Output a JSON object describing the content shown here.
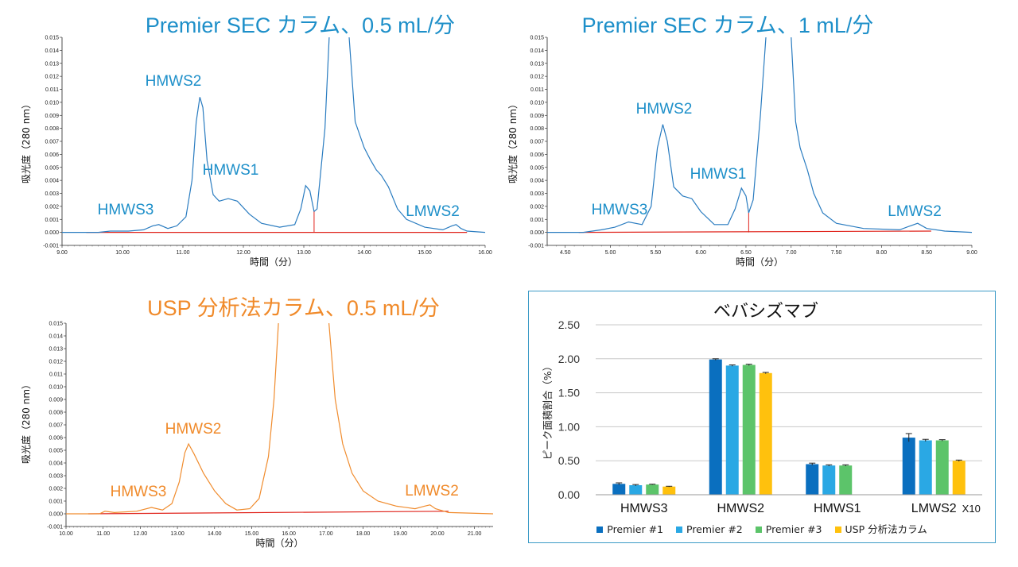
{
  "colors": {
    "premier_trace": "#2a7cc0",
    "premier_title": "#1d8fc9",
    "usp_trace": "#f08c2e",
    "usp_title": "#f08a2a",
    "baseline": "#e0231b",
    "bar1": "#0a6fbf",
    "bar2": "#2aa8e4",
    "bar3": "#5cc46a",
    "bar4": "#ffc10d"
  },
  "chart_data": [
    {
      "id": "premier_0_5",
      "type": "line",
      "title": "Premier SEC カラム、0.5 mL/分",
      "xlabel": "時間（分）",
      "ylabel": "吸光度（280 nm）",
      "xlim": [
        9.0,
        16.0
      ],
      "ylim": [
        -0.001,
        0.015
      ],
      "x_ticks": [
        "9.00",
        "10.00",
        "11.00",
        "12.00",
        "13.00",
        "14.00",
        "15.00",
        "16.00"
      ],
      "y_ticks": [
        "-0.001",
        "0.000",
        "0.001",
        "0.002",
        "0.003",
        "0.004",
        "0.005",
        "0.006",
        "0.007",
        "0.008",
        "0.009",
        "0.010",
        "0.011",
        "0.012",
        "0.013",
        "0.014",
        "0.015"
      ],
      "baseline": [
        [
          9.4,
          0.0
        ],
        [
          15.7,
          0.0
        ]
      ],
      "peaks": [
        {
          "label": "HMWS3",
          "x": 10.55,
          "y": 0.0006
        },
        {
          "label": "HMWS2",
          "x": 11.28,
          "y": 0.0104
        },
        {
          "label": "HMWS1",
          "x": 13.03,
          "y": 0.0036
        },
        {
          "label": "LMWS2",
          "x": 15.5,
          "y": 0.0006
        }
      ],
      "trace": [
        [
          9.0,
          0.0
        ],
        [
          9.6,
          0.0
        ],
        [
          9.8,
          0.0001
        ],
        [
          10.1,
          0.0001
        ],
        [
          10.35,
          0.0002
        ],
        [
          10.5,
          0.0005
        ],
        [
          10.6,
          0.0006
        ],
        [
          10.75,
          0.0003
        ],
        [
          10.9,
          0.0005
        ],
        [
          11.05,
          0.0012
        ],
        [
          11.15,
          0.004
        ],
        [
          11.22,
          0.0085
        ],
        [
          11.28,
          0.0104
        ],
        [
          11.33,
          0.0096
        ],
        [
          11.4,
          0.0055
        ],
        [
          11.5,
          0.0029
        ],
        [
          11.6,
          0.0024
        ],
        [
          11.75,
          0.0026
        ],
        [
          11.9,
          0.0024
        ],
        [
          12.1,
          0.0014
        ],
        [
          12.3,
          0.0007
        ],
        [
          12.6,
          0.0004
        ],
        [
          12.85,
          0.0006
        ],
        [
          12.95,
          0.0018
        ],
        [
          13.03,
          0.0036
        ],
        [
          13.1,
          0.0032
        ],
        [
          13.17,
          0.0016
        ],
        [
          13.22,
          0.0018
        ],
        [
          13.35,
          0.008
        ],
        [
          13.42,
          0.015
        ]
      ],
      "trace2": [
        [
          13.75,
          0.015
        ],
        [
          13.85,
          0.0085
        ],
        [
          14.0,
          0.0065
        ],
        [
          14.1,
          0.0056
        ],
        [
          14.2,
          0.0048
        ],
        [
          14.28,
          0.0044
        ],
        [
          14.4,
          0.0035
        ],
        [
          14.55,
          0.0018
        ],
        [
          14.7,
          0.001
        ],
        [
          15.0,
          0.0004
        ],
        [
          15.3,
          0.0002
        ],
        [
          15.45,
          0.0005
        ],
        [
          15.52,
          0.0006
        ],
        [
          15.6,
          0.0003
        ],
        [
          15.7,
          0.0001
        ],
        [
          16.0,
          0.0
        ]
      ]
    },
    {
      "id": "premier_1",
      "type": "line",
      "title": "Premier SEC カラム、1 mL/分",
      "xlabel": "時間（分）",
      "ylabel": "吸光度（280 nm）",
      "xlim": [
        4.3,
        9.0
      ],
      "ylim": [
        -0.001,
        0.015
      ],
      "x_ticks": [
        "4.50",
        "5.00",
        "5.50",
        "6.00",
        "6.50",
        "7.00",
        "7.50",
        "8.00",
        "8.50",
        "9.00"
      ],
      "y_ticks": [
        "-0.001",
        "0.000",
        "0.001",
        "0.002",
        "0.003",
        "0.004",
        "0.005",
        "0.006",
        "0.007",
        "0.008",
        "0.009",
        "0.010",
        "0.011",
        "0.012",
        "0.013",
        "0.014",
        "0.015"
      ],
      "baseline": [
        [
          4.65,
          0.0
        ],
        [
          8.55,
          0.0001
        ]
      ],
      "peaks": [
        {
          "label": "HMWS3",
          "x": 5.2,
          "y": 0.0008
        },
        {
          "label": "HMWS2",
          "x": 5.58,
          "y": 0.0083
        },
        {
          "label": "HMWS1",
          "x": 6.45,
          "y": 0.0034
        },
        {
          "label": "LMWS2",
          "x": 8.4,
          "y": 0.0007
        }
      ],
      "trace": [
        [
          4.3,
          0.0
        ],
        [
          4.7,
          0.0
        ],
        [
          4.9,
          0.0002
        ],
        [
          5.05,
          0.0004
        ],
        [
          5.2,
          0.0008
        ],
        [
          5.35,
          0.0006
        ],
        [
          5.45,
          0.002
        ],
        [
          5.52,
          0.0065
        ],
        [
          5.58,
          0.0083
        ],
        [
          5.63,
          0.007
        ],
        [
          5.7,
          0.0035
        ],
        [
          5.8,
          0.0028
        ],
        [
          5.9,
          0.0026
        ],
        [
          6.0,
          0.0016
        ],
        [
          6.15,
          0.0006
        ],
        [
          6.3,
          0.0006
        ],
        [
          6.38,
          0.0018
        ],
        [
          6.45,
          0.0034
        ],
        [
          6.5,
          0.0028
        ],
        [
          6.53,
          0.0015
        ],
        [
          6.58,
          0.0025
        ],
        [
          6.66,
          0.009
        ],
        [
          6.72,
          0.015
        ]
      ],
      "trace2": [
        [
          7.0,
          0.015
        ],
        [
          7.05,
          0.0085
        ],
        [
          7.1,
          0.0065
        ],
        [
          7.18,
          0.0048
        ],
        [
          7.25,
          0.003
        ],
        [
          7.35,
          0.0015
        ],
        [
          7.5,
          0.0007
        ],
        [
          7.8,
          0.0003
        ],
        [
          8.2,
          0.0002
        ],
        [
          8.32,
          0.0005
        ],
        [
          8.4,
          0.0007
        ],
        [
          8.5,
          0.0003
        ],
        [
          8.7,
          0.0001
        ],
        [
          9.0,
          0.0
        ]
      ]
    },
    {
      "id": "usp_0_5",
      "type": "line",
      "title": "USP 分析法カラム、0.5 mL/分",
      "xlabel": "時間（分）",
      "ylabel": "吸光度（280 nm）",
      "xlim": [
        10.0,
        21.5
      ],
      "ylim": [
        -0.001,
        0.015
      ],
      "x_ticks": [
        "10.00",
        "11.00",
        "12.00",
        "13.00",
        "14.00",
        "15.00",
        "16.00",
        "17.00",
        "18.00",
        "19.00",
        "20.00",
        "21.00"
      ],
      "y_ticks": [
        "-0.001",
        "0.000",
        "0.001",
        "0.002",
        "0.003",
        "0.004",
        "0.005",
        "0.006",
        "0.007",
        "0.008",
        "0.009",
        "0.010",
        "0.011",
        "0.012",
        "0.013",
        "0.014",
        "0.015"
      ],
      "baseline": [
        [
          10.6,
          0.0
        ],
        [
          20.3,
          0.0002
        ]
      ],
      "peaks": [
        {
          "label": "HMWS3",
          "x": 12.3,
          "y": 0.0005
        },
        {
          "label": "HMWS2",
          "x": 13.3,
          "y": 0.0055
        },
        {
          "label": "LMWS2",
          "x": 19.8,
          "y": 0.0007
        }
      ],
      "trace": [
        [
          10.0,
          0.0
        ],
        [
          10.9,
          0.0
        ],
        [
          11.05,
          0.0002
        ],
        [
          11.3,
          0.0001
        ],
        [
          11.9,
          0.0002
        ],
        [
          12.3,
          0.0005
        ],
        [
          12.6,
          0.0003
        ],
        [
          12.85,
          0.0008
        ],
        [
          13.05,
          0.0025
        ],
        [
          13.2,
          0.0048
        ],
        [
          13.3,
          0.0055
        ],
        [
          13.45,
          0.0047
        ],
        [
          13.7,
          0.0032
        ],
        [
          14.0,
          0.0018
        ],
        [
          14.3,
          0.0008
        ],
        [
          14.6,
          0.0003
        ],
        [
          14.95,
          0.0004
        ],
        [
          15.2,
          0.0012
        ],
        [
          15.45,
          0.0045
        ],
        [
          15.6,
          0.009
        ],
        [
          15.72,
          0.015
        ]
      ],
      "trace2": [
        [
          17.08,
          0.015
        ],
        [
          17.25,
          0.009
        ],
        [
          17.45,
          0.0055
        ],
        [
          17.7,
          0.0032
        ],
        [
          18.0,
          0.0018
        ],
        [
          18.4,
          0.001
        ],
        [
          18.9,
          0.0006
        ],
        [
          19.4,
          0.0004
        ],
        [
          19.65,
          0.0006
        ],
        [
          19.8,
          0.0007
        ],
        [
          19.95,
          0.0004
        ],
        [
          20.3,
          0.0001
        ],
        [
          21.5,
          0.0
        ]
      ]
    },
    {
      "id": "bevacizumab_bar",
      "type": "bar",
      "title": "ベバシズマブ",
      "xlabel": "",
      "ylabel": "ピーク面積割合（%）",
      "ylim": [
        0.0,
        2.5
      ],
      "y_ticks": [
        "0.00",
        "0.50",
        "1.00",
        "1.50",
        "2.00",
        "2.50"
      ],
      "categories": [
        "HMWS3",
        "HMWS2",
        "HMWS1",
        "LMWS2"
      ],
      "category_suffix": {
        "LMWS2": "X10"
      },
      "series": [
        {
          "name": "Premier #1",
          "values": [
            0.16,
            1.99,
            0.45,
            0.84
          ],
          "errors": [
            0.015,
            0.01,
            0.015,
            0.06
          ]
        },
        {
          "name": "Premier #2",
          "values": [
            0.14,
            1.9,
            0.43,
            0.8
          ],
          "errors": [
            0.01,
            0.01,
            0.01,
            0.015
          ]
        },
        {
          "name": "Premier #3",
          "values": [
            0.15,
            1.91,
            0.43,
            0.8
          ],
          "errors": [
            0.005,
            0.01,
            0.01,
            0.01
          ]
        },
        {
          "name": "USP 分析法カラム",
          "values": [
            0.12,
            1.79,
            null,
            0.5
          ],
          "errors": [
            0.005,
            0.01,
            null,
            0.01
          ]
        }
      ]
    }
  ]
}
